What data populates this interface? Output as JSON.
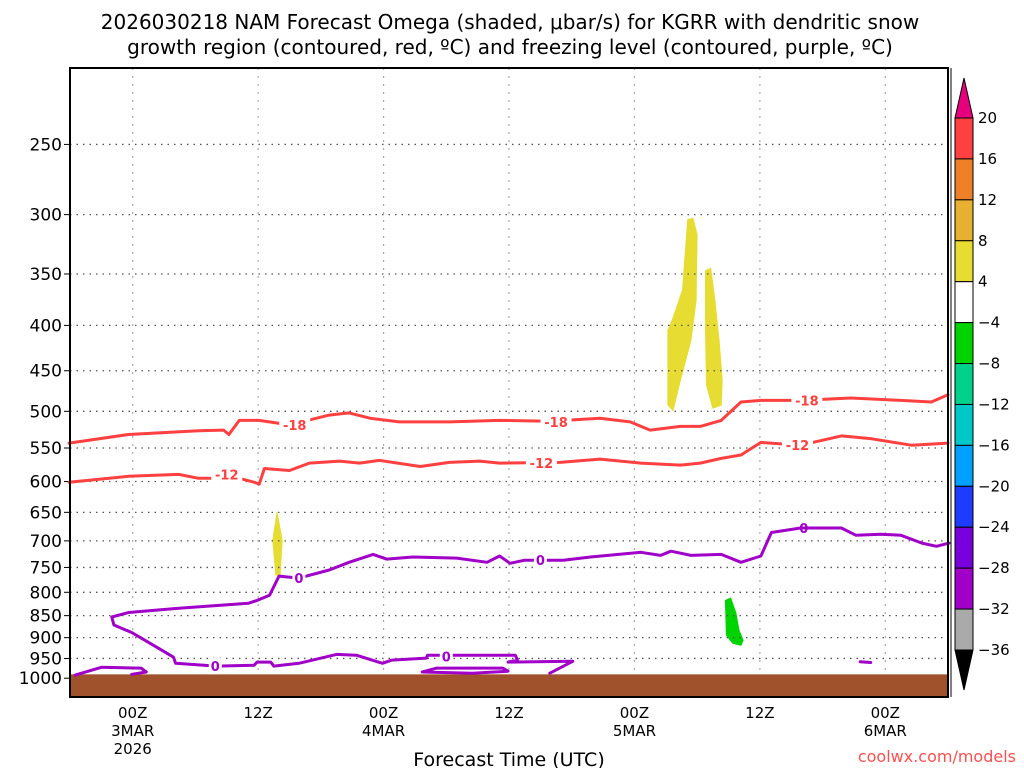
{
  "chart_data": {
    "type": "contour",
    "title_lines": [
      "2026030218 NAM Forecast Omega (shaded, μbar/s) for KGRR with dendritic snow",
      "growth region (contoured, red, ºC) and freezing level (contoured, purple, ºC)"
    ],
    "xlabel": "Forecast Time (UTC)",
    "credit": "coolwx.com/models",
    "x_units": "hours after 00Z 3MAR 2026",
    "xlim": [
      -6,
      78
    ],
    "ylim_hpa": [
      1050,
      205
    ],
    "y_scale": "log",
    "y_ticks": [
      250,
      300,
      350,
      400,
      450,
      500,
      550,
      600,
      650,
      700,
      750,
      800,
      850,
      900,
      950,
      1000
    ],
    "x_ticks": [
      {
        "hour": 0,
        "lines": [
          "00Z",
          "3MAR",
          "2026"
        ]
      },
      {
        "hour": 12,
        "lines": [
          "12Z"
        ]
      },
      {
        "hour": 24,
        "lines": [
          "00Z",
          "4MAR"
        ]
      },
      {
        "hour": 36,
        "lines": [
          "12Z"
        ]
      },
      {
        "hour": 48,
        "lines": [
          "00Z",
          "5MAR"
        ]
      },
      {
        "hour": 60,
        "lines": [
          "12Z"
        ]
      },
      {
        "hour": 72,
        "lines": [
          "00Z",
          "6MAR"
        ]
      }
    ],
    "grid": true,
    "surface_pressure_hpa": 990,
    "colorbar": {
      "levels": [
        "20",
        "16",
        "12",
        "8",
        "4",
        "−4",
        "−8",
        "−12",
        "−16",
        "−20",
        "−24",
        "−28",
        "−32",
        "−36"
      ],
      "over_color": "#e6007e",
      "colors": [
        "#ff4040",
        "#f08028",
        "#e8b030",
        "#e6dc32",
        "#ffffff",
        "#00d400",
        "#00d28c",
        "#00c8c8",
        "#00a0ff",
        "#1e3cff",
        "#7800dc",
        "#a000c8",
        "#aaaaaa"
      ],
      "under_color": "#000000"
    },
    "colors": {
      "red": "#ff4040",
      "purple": "#a000c8",
      "terrain": "#a0522d"
    },
    "shaded_regions": [
      {
        "name": "omega-4-8-a",
        "color": "#e6dc32",
        "points": [
          [
            13.8,
            650
          ],
          [
            14.3,
            699
          ],
          [
            14.1,
            765
          ],
          [
            13.7,
            765
          ],
          [
            13.4,
            699
          ]
        ]
      },
      {
        "name": "omega-4-8-b",
        "color": "#e6dc32",
        "points": [
          [
            51.2,
            405
          ],
          [
            51.6,
            395
          ],
          [
            52.6,
            365
          ],
          [
            53.1,
            304
          ],
          [
            53.6,
            303
          ],
          [
            54.0,
            316
          ],
          [
            53.9,
            375
          ],
          [
            53.4,
            416
          ],
          [
            52.4,
            461
          ],
          [
            51.7,
            499
          ],
          [
            51.2,
            492
          ]
        ]
      },
      {
        "name": "omega-4-8-c",
        "color": "#e6dc32",
        "points": [
          [
            54.8,
            347
          ],
          [
            55.3,
            345
          ],
          [
            55.7,
            375
          ],
          [
            56.1,
            416
          ],
          [
            56.4,
            461
          ],
          [
            56.3,
            492
          ],
          [
            55.5,
            496
          ],
          [
            54.9,
            467
          ],
          [
            54.8,
            405
          ]
        ]
      },
      {
        "name": "omega-neg8-neg4",
        "color": "#00d400",
        "points": [
          [
            56.7,
            817
          ],
          [
            57.2,
            812
          ],
          [
            57.7,
            843
          ],
          [
            58.0,
            883
          ],
          [
            58.4,
            906
          ],
          [
            58.2,
            918
          ],
          [
            57.4,
            913
          ],
          [
            56.8,
            894
          ]
        ]
      }
    ],
    "contours": [
      {
        "name": "dgz-minus18",
        "color": "red",
        "label": "-18",
        "label_at": [
          [
            15.5,
            518
          ],
          [
            40.5,
            514
          ],
          [
            64.5,
            486
          ]
        ],
        "points": [
          [
            -6.1,
            543
          ],
          [
            -0.4,
            531
          ],
          [
            6.3,
            526
          ],
          [
            8.7,
            525
          ],
          [
            9.2,
            531
          ],
          [
            10.2,
            512
          ],
          [
            12.1,
            512
          ],
          [
            15,
            518
          ],
          [
            18.8,
            505
          ],
          [
            20.7,
            502
          ],
          [
            22.7,
            509
          ],
          [
            25.5,
            514
          ],
          [
            30.3,
            514
          ],
          [
            35.1,
            512
          ],
          [
            39.9,
            513
          ],
          [
            44.7,
            509
          ],
          [
            47.6,
            514
          ],
          [
            49.5,
            525
          ],
          [
            52.4,
            520
          ],
          [
            54.3,
            520
          ],
          [
            56.3,
            512
          ],
          [
            58.2,
            488
          ],
          [
            60.1,
            486
          ],
          [
            63.9,
            486
          ],
          [
            68.7,
            483
          ],
          [
            73.5,
            486
          ],
          [
            76.4,
            488
          ],
          [
            78,
            479
          ]
        ]
      },
      {
        "name": "dgz-minus12",
        "color": "red",
        "label": "-12",
        "label_at": [
          [
            9.0,
            589
          ],
          [
            39.1,
            572
          ],
          [
            63.6,
            546
          ]
        ],
        "points": [
          [
            -6.1,
            601
          ],
          [
            -0.4,
            592
          ],
          [
            4.4,
            589
          ],
          [
            6.3,
            595
          ],
          [
            10.2,
            595
          ],
          [
            11.6,
            601
          ],
          [
            12.1,
            604
          ],
          [
            12.6,
            580
          ],
          [
            15,
            583
          ],
          [
            16.9,
            572
          ],
          [
            19.8,
            569
          ],
          [
            21.7,
            572
          ],
          [
            23.6,
            568
          ],
          [
            27.5,
            577
          ],
          [
            30.3,
            571
          ],
          [
            33.2,
            569
          ],
          [
            35.1,
            572
          ],
          [
            40.9,
            571
          ],
          [
            44.7,
            566
          ],
          [
            48.6,
            572
          ],
          [
            52.4,
            575
          ],
          [
            54.3,
            572
          ],
          [
            56.3,
            565
          ],
          [
            58.2,
            560
          ],
          [
            60.1,
            542
          ],
          [
            63.9,
            546
          ],
          [
            67.8,
            533
          ],
          [
            70.7,
            537
          ],
          [
            74.5,
            546
          ],
          [
            78,
            543
          ]
        ]
      },
      {
        "name": "freezing-level-main",
        "color": "purple",
        "label": "0",
        "label_at": [
          [
            15.9,
            771
          ],
          [
            39.0,
            736
          ],
          [
            64.2,
            677
          ],
          [
            7.9,
            969
          ]
        ],
        "points": [
          [
            43.8,
            730
          ],
          [
            41.2,
            736
          ],
          [
            37.5,
            736
          ],
          [
            36.1,
            742
          ],
          [
            35.1,
            728
          ],
          [
            33.9,
            740
          ],
          [
            31.0,
            732
          ],
          [
            26.8,
            730
          ],
          [
            24.3,
            734
          ],
          [
            23.0,
            725
          ],
          [
            20.7,
            740
          ],
          [
            18.8,
            755
          ],
          [
            15.9,
            771
          ],
          [
            14.0,
            767
          ],
          [
            13.1,
            806
          ],
          [
            11.9,
            817
          ],
          [
            11.1,
            823
          ],
          [
            4.4,
            834
          ],
          [
            -0.4,
            843
          ],
          [
            -2.0,
            853
          ],
          [
            -1.8,
            871
          ],
          [
            -0.1,
            888
          ],
          [
            2.8,
            930
          ],
          [
            3.9,
            947
          ],
          [
            4.1,
            962
          ],
          [
            8.0,
            969
          ],
          [
            11.6,
            967
          ],
          [
            11.9,
            959
          ],
          [
            13.2,
            959
          ],
          [
            13.5,
            969
          ],
          [
            15.9,
            962
          ],
          [
            19.5,
            940
          ],
          [
            21.4,
            942
          ],
          [
            23.9,
            962
          ],
          [
            24.8,
            954
          ],
          [
            28.1,
            949
          ],
          [
            28.2,
            942
          ],
          [
            36.6,
            942
          ],
          [
            36.8,
            954
          ],
          [
            35.9,
            959
          ],
          [
            42.1,
            957
          ],
          [
            39.9,
            987
          ]
        ]
      },
      {
        "name": "freezing-level-upper",
        "color": "purple",
        "label": "",
        "points": [
          [
            43.8,
            730
          ],
          [
            48.6,
            721
          ],
          [
            50.5,
            727
          ],
          [
            51.5,
            719
          ],
          [
            53.4,
            727
          ],
          [
            56.3,
            725
          ],
          [
            58.2,
            740
          ],
          [
            60.1,
            728
          ],
          [
            61.1,
            685
          ],
          [
            63.9,
            677
          ],
          [
            67.8,
            677
          ],
          [
            69.2,
            690
          ],
          [
            71.6,
            688
          ],
          [
            73.5,
            690
          ],
          [
            75.5,
            704
          ],
          [
            76.9,
            710
          ],
          [
            78.1,
            704
          ]
        ]
      },
      {
        "name": "freezing-level-sfc-left",
        "color": "purple",
        "label": "",
        "points": [
          [
            -5.5,
            992
          ],
          [
            -3.0,
            972
          ],
          [
            0.8,
            974
          ],
          [
            1.3,
            984
          ],
          [
            -0.1,
            990
          ]
        ]
      },
      {
        "name": "freezing-level-loop",
        "color": "purple",
        "label": "0",
        "label_at": [
          [
            30.0,
            945
          ]
        ],
        "points": [
          [
            27.7,
            984
          ],
          [
            29.1,
            974
          ],
          [
            35.4,
            974
          ],
          [
            35.9,
            982
          ],
          [
            32.5,
            987
          ],
          [
            27.7,
            984
          ]
        ]
      },
      {
        "name": "freezing-level-blob",
        "color": "purple",
        "label": "",
        "points": [
          [
            69.6,
            958
          ],
          [
            70.6,
            960
          ]
        ]
      }
    ]
  }
}
